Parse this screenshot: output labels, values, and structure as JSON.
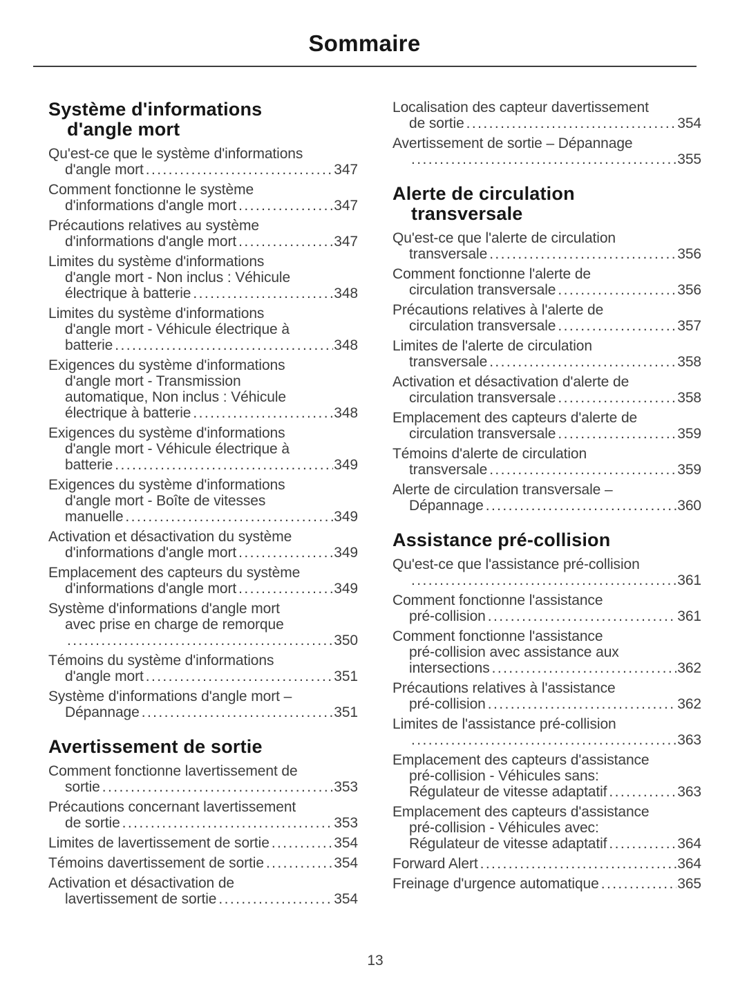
{
  "page": {
    "title": "Sommaire",
    "page_number": "13"
  },
  "colors": {
    "background": "#ffffff",
    "body_text": "#3c3c3c",
    "heading_text": "#161616",
    "rule": "#3d3d3d"
  },
  "columns": [
    {
      "blocks": [
        {
          "heading_lines": [
            "Système d'informations",
            "d'angle mort"
          ],
          "entries": [
            {
              "lines": [
                "Qu'est-ce que le système d'informations",
                "d'angle mort"
              ],
              "page": "347"
            },
            {
              "lines": [
                "Comment fonctionne le système",
                "d'informations d'angle mort"
              ],
              "page": "347"
            },
            {
              "lines": [
                "Précautions relatives au système",
                "d'informations d'angle mort"
              ],
              "page": "347"
            },
            {
              "lines": [
                "Limites du système d'informations",
                "d'angle mort - Non inclus : Véhicule",
                "électrique à batterie"
              ],
              "page": "348"
            },
            {
              "lines": [
                "Limites du système d'informations",
                "d'angle mort - Véhicule électrique à",
                "batterie"
              ],
              "page": "348"
            },
            {
              "lines": [
                "Exigences du système d'informations",
                "d'angle mort - Transmission",
                "automatique, Non inclus : Véhicule",
                "électrique à batterie"
              ],
              "page": "348"
            },
            {
              "lines": [
                "Exigences du système d'informations",
                "d'angle mort - Véhicule électrique à",
                "batterie"
              ],
              "page": "349"
            },
            {
              "lines": [
                "Exigences du système d'informations",
                "d'angle mort - Boîte de vitesses",
                "manuelle"
              ],
              "page": "349"
            },
            {
              "lines": [
                "Activation et désactivation du système",
                "d'informations d'angle mort"
              ],
              "page": "349"
            },
            {
              "lines": [
                "Emplacement des capteurs du système",
                "d'informations d'angle mort"
              ],
              "page": "349"
            },
            {
              "lines": [
                "Système d'informations d'angle mort",
                "avec prise en charge de remorque",
                ""
              ],
              "page": "350"
            },
            {
              "lines": [
                "Témoins du système d'informations",
                "d'angle mort"
              ],
              "page": "351"
            },
            {
              "lines": [
                "Système d'informations d'angle mort –",
                "Dépannage"
              ],
              "page": "351"
            }
          ]
        },
        {
          "heading_lines": [
            "Avertissement de sortie"
          ],
          "entries": [
            {
              "lines": [
                "Comment fonctionne lavertissement de",
                "sortie"
              ],
              "page": "353"
            },
            {
              "lines": [
                "Précautions concernant lavertissement",
                "de sortie"
              ],
              "page": "353"
            },
            {
              "lines": [
                "Limites de lavertissement de sortie"
              ],
              "page": "354"
            },
            {
              "lines": [
                "Témoins davertissement de sortie"
              ],
              "page": "354"
            },
            {
              "lines": [
                "Activation et désactivation de",
                "lavertissement de sortie"
              ],
              "page": "354"
            }
          ]
        }
      ]
    },
    {
      "blocks": [
        {
          "entries": [
            {
              "lines": [
                "Localisation des capteur davertissement",
                "de sortie"
              ],
              "page": "354"
            },
            {
              "lines": [
                "Avertissement de sortie – Dépannage",
                ""
              ],
              "page": "355"
            }
          ]
        },
        {
          "heading_lines": [
            "Alerte de circulation",
            "transversale"
          ],
          "entries": [
            {
              "lines": [
                "Qu'est-ce que l'alerte de circulation",
                "transversale"
              ],
              "page": "356"
            },
            {
              "lines": [
                "Comment fonctionne l'alerte de",
                "circulation transversale"
              ],
              "page": "356"
            },
            {
              "lines": [
                "Précautions relatives à l'alerte de",
                "circulation transversale"
              ],
              "page": "357"
            },
            {
              "lines": [
                "Limites de l'alerte de circulation",
                "transversale"
              ],
              "page": "358"
            },
            {
              "lines": [
                "Activation et désactivation d'alerte de",
                "circulation transversale"
              ],
              "page": "358"
            },
            {
              "lines": [
                "Emplacement des capteurs d'alerte de",
                "circulation transversale"
              ],
              "page": "359"
            },
            {
              "lines": [
                "Témoins d'alerte de circulation",
                "transversale"
              ],
              "page": "359"
            },
            {
              "lines": [
                "Alerte de circulation transversale –",
                "Dépannage"
              ],
              "page": "360"
            }
          ]
        },
        {
          "heading_lines": [
            "Assistance pré-collision"
          ],
          "entries": [
            {
              "lines": [
                "Qu'est-ce que l'assistance pré-collision",
                ""
              ],
              "page": "361"
            },
            {
              "lines": [
                "Comment fonctionne l'assistance",
                "pré-collision"
              ],
              "page": "361"
            },
            {
              "lines": [
                "Comment fonctionne l'assistance",
                "pré-collision avec assistance aux",
                "intersections"
              ],
              "page": "362"
            },
            {
              "lines": [
                "Précautions relatives à l'assistance",
                "pré-collision"
              ],
              "page": "362"
            },
            {
              "lines": [
                "Limites de l'assistance pré-collision",
                ""
              ],
              "page": "363"
            },
            {
              "lines": [
                "Emplacement des capteurs d'assistance",
                "pré-collision - Véhicules sans:",
                "Régulateur de vitesse adaptatif"
              ],
              "page": "363"
            },
            {
              "lines": [
                "Emplacement des capteurs d'assistance",
                "pré-collision - Véhicules avec:",
                "Régulateur de vitesse adaptatif"
              ],
              "page": "364"
            },
            {
              "lines": [
                "Forward Alert"
              ],
              "page": "364"
            },
            {
              "lines": [
                "Freinage d'urgence automatique"
              ],
              "page": "365"
            }
          ]
        }
      ]
    }
  ]
}
